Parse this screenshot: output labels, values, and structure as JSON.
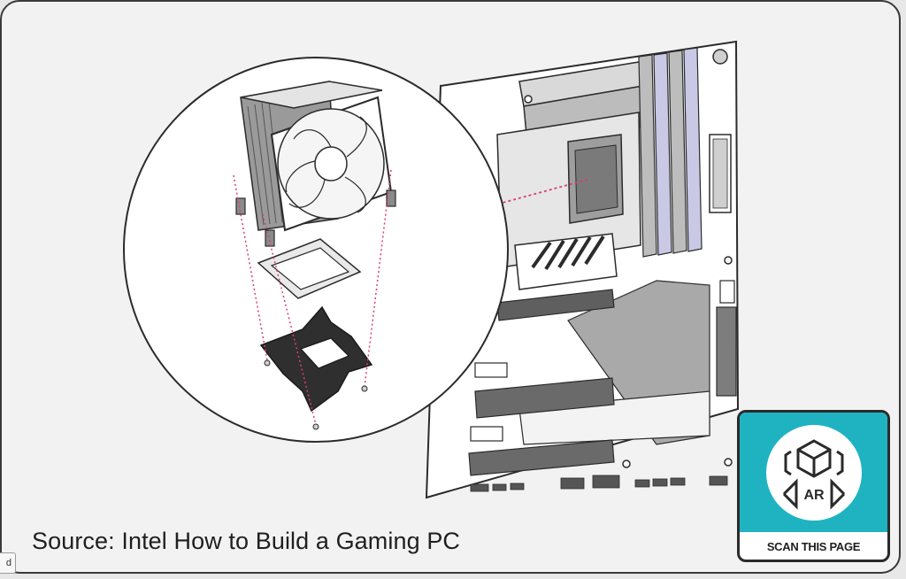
{
  "caption": "Source: Intel How to Build a Gaming PC",
  "ar_badge": {
    "label": "SCAN THIS PAGE",
    "icon_text": "AR",
    "icon": "ar-cube-icon",
    "accent_color": "#1fb3c2"
  },
  "corner_tab": "d",
  "illustration": {
    "icons": [
      "motherboard-illustration",
      "cpu-cooler-illustration",
      "fan-icon",
      "mounting-bracket-icon"
    ]
  }
}
